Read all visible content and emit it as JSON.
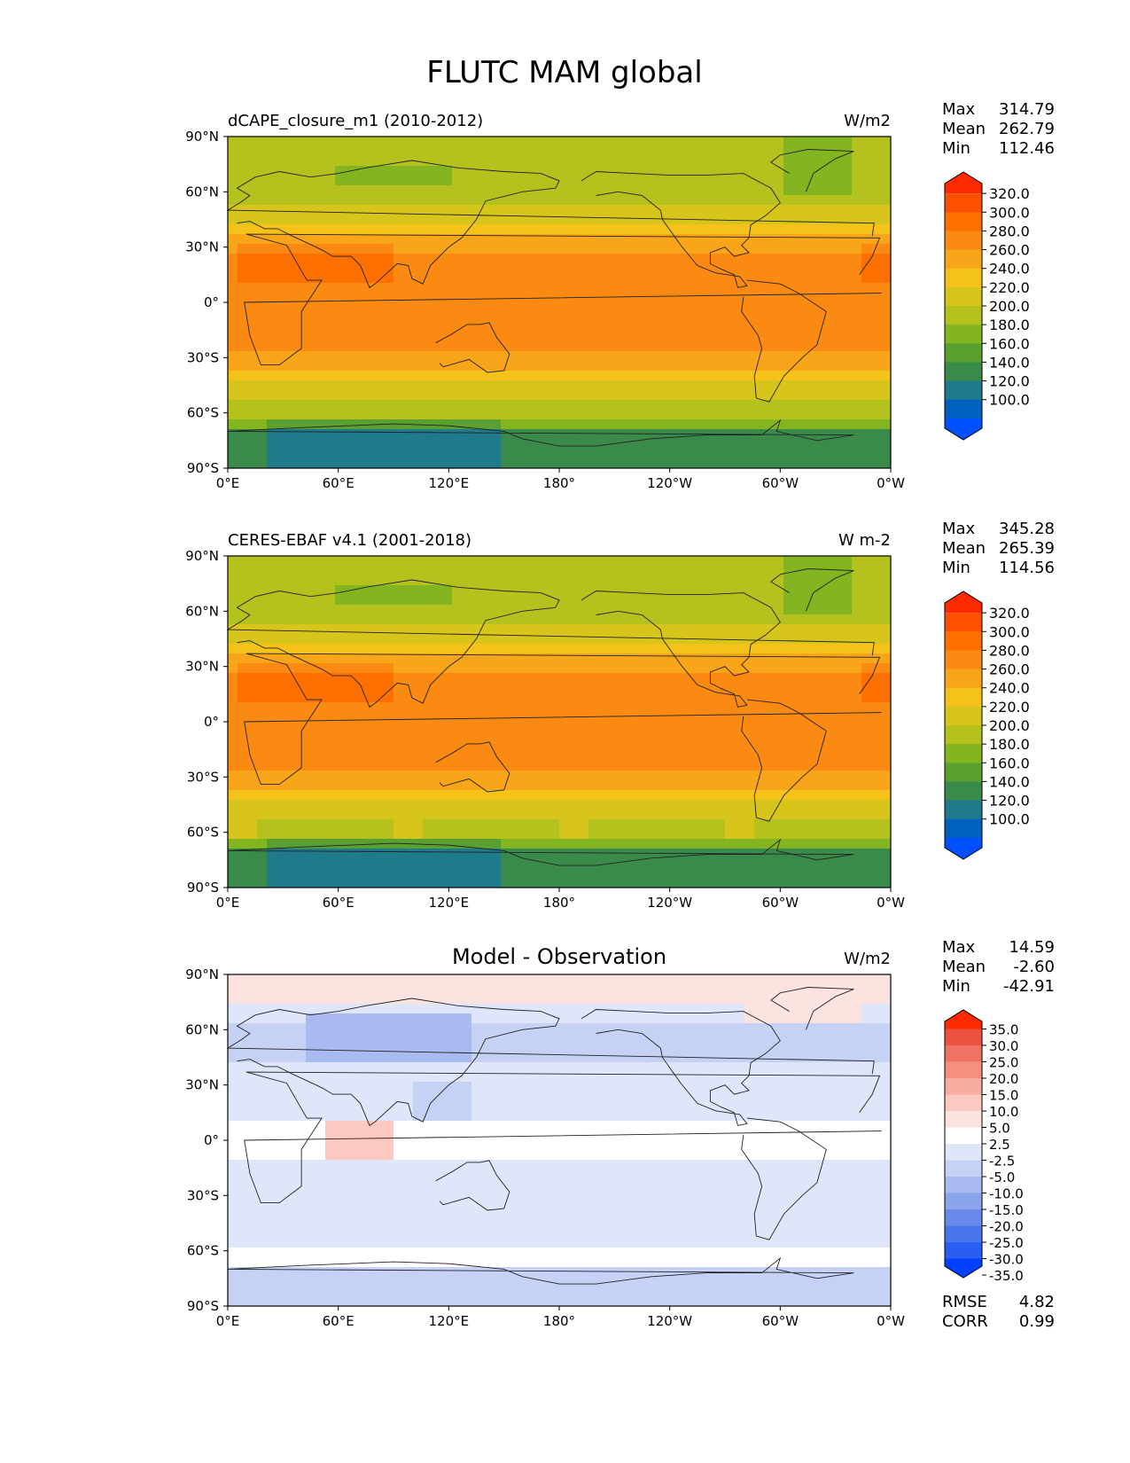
{
  "figure_title": "FLUTC MAM global",
  "x_ticks": [
    "0°E",
    "60°E",
    "120°E",
    "180°",
    "120°W",
    "60°W",
    "0°W"
  ],
  "y_ticks": [
    "90°N",
    "60°N",
    "30°N",
    "0°",
    "30°S",
    "60°S",
    "90°S"
  ],
  "stat_labels": {
    "max": "Max",
    "mean": "Mean",
    "min": "Min",
    "rmse": "RMSE",
    "corr": "CORR"
  },
  "panels": [
    {
      "title": "dCAPE_closure_m1 (2010-2012)",
      "title_style": "left",
      "units": "W/m2",
      "stats": {
        "max": "314.79",
        "mean": "262.79",
        "min": "112.46"
      },
      "colorbar_labels": [
        "320.0",
        "300.0",
        "280.0",
        "260.0",
        "240.0",
        "220.0",
        "200.0",
        "180.0",
        "160.0",
        "140.0",
        "120.0",
        "100.0"
      ]
    },
    {
      "title": "CERES-EBAF v4.1 (2001-2018)",
      "title_style": "left",
      "units": "W m-2",
      "stats": {
        "max": "345.28",
        "mean": "265.39",
        "min": "114.56"
      },
      "colorbar_labels": [
        "320.0",
        "300.0",
        "280.0",
        "260.0",
        "240.0",
        "220.0",
        "200.0",
        "180.0",
        "160.0",
        "140.0",
        "120.0",
        "100.0"
      ]
    },
    {
      "title": "Model - Observation",
      "title_style": "center",
      "units": "W/m2",
      "stats": {
        "max": "14.59",
        "mean": "-2.60",
        "min": "-42.91"
      },
      "colorbar_labels": [
        "35.0",
        "30.0",
        "25.0",
        "20.0",
        "15.0",
        "10.0",
        "5.0",
        "2.5",
        "-2.5",
        "-5.0",
        "-10.0",
        "-15.0",
        "-20.0",
        "-25.0",
        "-30.0",
        "-35.0"
      ],
      "extra_stats": {
        "rmse": "4.82",
        "corr": "0.99"
      }
    }
  ],
  "colormaps": {
    "abs": [
      "#0050ff",
      "#0060c0",
      "#1f7a8c",
      "#3a8a4a",
      "#5aa030",
      "#82b51f",
      "#b5c21d",
      "#d8c51b",
      "#f5c21a",
      "#f9a51a",
      "#fb8a12",
      "#fd7000",
      "#ff5000",
      "#ff2a00"
    ],
    "diff": [
      "#0040ff",
      "#2a5ef2",
      "#4a74ec",
      "#6a8aeb",
      "#8aa4ee",
      "#a8baf0",
      "#c5d2f5",
      "#dfe6fa",
      "#ffffff",
      "#fde3df",
      "#fcc8c0",
      "#f9aca0",
      "#f59080",
      "#f07262",
      "#eb5340",
      "#ff2a00"
    ]
  }
}
